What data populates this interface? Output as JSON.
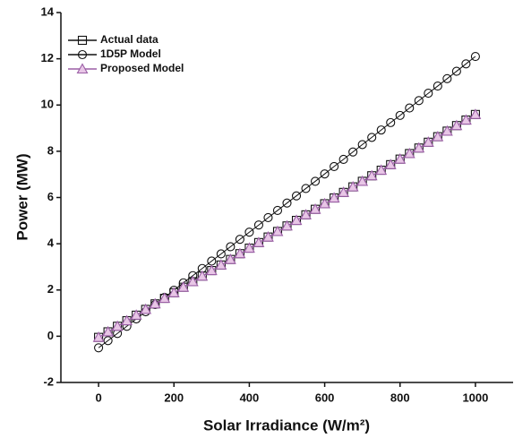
{
  "chart_data": {
    "type": "line",
    "x_label": "Solar Irradiance (W/m²)",
    "y_label": "Power (MW)",
    "x": [
      0,
      25,
      50,
      75,
      100,
      125,
      150,
      175,
      200,
      225,
      250,
      275,
      300,
      325,
      350,
      375,
      400,
      425,
      450,
      475,
      500,
      525,
      550,
      575,
      600,
      625,
      650,
      675,
      700,
      725,
      750,
      775,
      800,
      825,
      850,
      875,
      900,
      925,
      950,
      975,
      1000
    ],
    "series": [
      {
        "name": "Actual data",
        "color": "#111111",
        "marker": "square",
        "values": [
          -0.05,
          0.19,
          0.43,
          0.67,
          0.91,
          1.16,
          1.4,
          1.64,
          1.88,
          2.12,
          2.36,
          2.6,
          2.84,
          3.08,
          3.32,
          3.57,
          3.81,
          4.05,
          4.29,
          4.53,
          4.77,
          5.01,
          5.25,
          5.49,
          5.73,
          5.98,
          6.22,
          6.46,
          6.7,
          6.94,
          7.18,
          7.42,
          7.66,
          7.9,
          8.14,
          8.39,
          8.63,
          8.87,
          9.11,
          9.35,
          9.59
        ]
      },
      {
        "name": "1D5P Model",
        "color": "#111111",
        "marker": "circle",
        "values": [
          -0.5,
          -0.19,
          0.12,
          0.43,
          0.75,
          1.06,
          1.37,
          1.68,
          1.99,
          2.31,
          2.62,
          2.93,
          3.25,
          3.56,
          3.87,
          4.19,
          4.5,
          4.81,
          5.13,
          5.44,
          5.76,
          6.07,
          6.39,
          6.7,
          7.02,
          7.34,
          7.65,
          7.97,
          8.29,
          8.6,
          8.92,
          9.24,
          9.55,
          9.87,
          10.19,
          10.51,
          10.82,
          11.14,
          11.46,
          11.78,
          12.1
        ]
      },
      {
        "name": "Proposed Model",
        "color": "#9b5fa6",
        "marker": "triangle",
        "values": [
          -0.05,
          0.19,
          0.43,
          0.67,
          0.91,
          1.16,
          1.4,
          1.64,
          1.88,
          2.12,
          2.36,
          2.6,
          2.84,
          3.08,
          3.32,
          3.57,
          3.81,
          4.05,
          4.29,
          4.53,
          4.77,
          5.01,
          5.25,
          5.49,
          5.73,
          5.98,
          6.22,
          6.46,
          6.7,
          6.94,
          7.18,
          7.42,
          7.66,
          7.9,
          8.14,
          8.39,
          8.63,
          8.87,
          9.11,
          9.35,
          9.59
        ]
      }
    ],
    "xlim": [
      -100,
      1100
    ],
    "ylim": [
      -2,
      14
    ],
    "xticks": [
      0,
      200,
      400,
      600,
      800,
      1000
    ],
    "yticks": [
      -2,
      0,
      2,
      4,
      6,
      8,
      10,
      12,
      14
    ],
    "legend": "upper left"
  }
}
